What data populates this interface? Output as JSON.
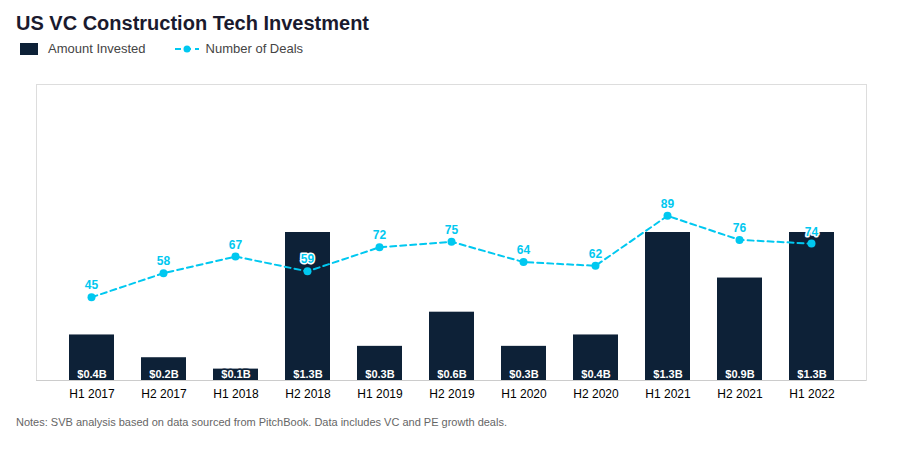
{
  "chart_data": {
    "type": "bar",
    "title": "US VC Construction Tech Investment",
    "categories": [
      "H1 2017",
      "H2 2017",
      "H1 2018",
      "H2 2018",
      "H1 2019",
      "H2 2019",
      "H1 2020",
      "H2 2020",
      "H1 2021",
      "H2 2021",
      "H1 2022"
    ],
    "series": [
      {
        "name": "Amount Invested",
        "type": "bar",
        "color": "#0d2137",
        "values": [
          0.4,
          0.2,
          0.1,
          1.3,
          0.3,
          0.6,
          0.3,
          0.4,
          1.3,
          0.9,
          1.3
        ],
        "value_labels": [
          "$0.4B",
          "$0.2B",
          "$0.1B",
          "$1.3B",
          "$0.3B",
          "$0.6B",
          "$0.3B",
          "$0.4B",
          "$1.3B",
          "$0.9B",
          "$1.3B"
        ]
      },
      {
        "name": "Number of Deals",
        "type": "line",
        "axis": "y2",
        "color": "#00c8f0",
        "marker": "circle",
        "line_style": "dashed",
        "values": [
          45,
          58,
          67,
          59,
          72,
          75,
          64,
          62,
          89,
          76,
          74
        ]
      }
    ],
    "ylim": [
      0,
      2.6
    ],
    "yticks": [],
    "y2lim": [
      0,
      160
    ],
    "y2ticks": [],
    "tick_labels": "x",
    "data_labels": true,
    "legend": "top",
    "grid": false,
    "annotations": [
      "Notes: SVB analysis based on data sourced from PitchBook. Data includes VC and PE growth deals."
    ]
  }
}
